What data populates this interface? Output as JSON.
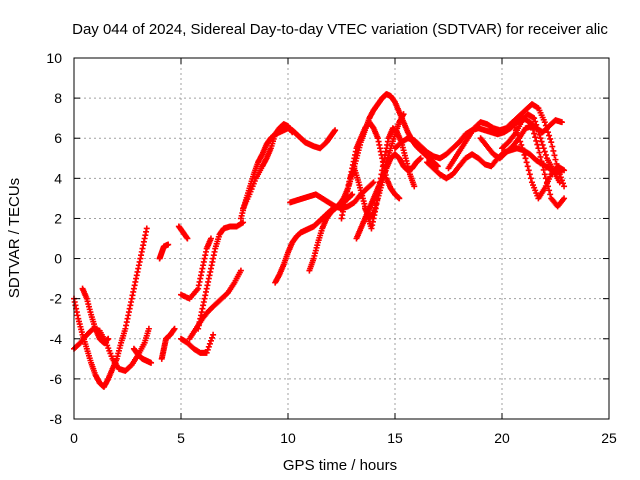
{
  "chart_data": {
    "type": "scatter",
    "title": "Day 044 of 2024, Sidereal Day-to-day VTEC variation (SDTVAR) for receiver alic",
    "xlabel": "GPS time / hours",
    "ylabel": "SDTVAR / TECUs",
    "xlim": [
      0,
      25
    ],
    "ylim": [
      -8,
      10
    ],
    "xticks": [
      0,
      5,
      10,
      15,
      20,
      25
    ],
    "yticks": [
      -8,
      -6,
      -4,
      -2,
      0,
      2,
      4,
      6,
      8,
      10
    ],
    "grid": true,
    "marker": "+",
    "color": "#ff0000",
    "series": [
      {
        "x": [
          0.0,
          0.2,
          0.4,
          0.6,
          0.8,
          1.0,
          1.2,
          1.4,
          1.6,
          1.8,
          2.0,
          2.2,
          2.4,
          2.6,
          2.8,
          3.0,
          3.2,
          3.4
        ],
        "y": [
          -2.0,
          -3.0,
          -3.8,
          -4.5,
          -5.2,
          -5.8,
          -6.2,
          -6.4,
          -6.0,
          -5.5,
          -5.0,
          -4.2,
          -3.5,
          -2.5,
          -1.5,
          -0.5,
          0.5,
          1.5
        ]
      },
      {
        "x": [
          0.0,
          0.3,
          0.6,
          0.9,
          1.2,
          1.5,
          1.8,
          2.1,
          2.4,
          2.7,
          3.0,
          3.3,
          3.5
        ],
        "y": [
          -4.5,
          -4.2,
          -3.8,
          -3.5,
          -3.6,
          -4.2,
          -5.0,
          -5.5,
          -5.6,
          -5.3,
          -4.8,
          -4.2,
          -3.5
        ]
      },
      {
        "x": [
          0.4,
          0.6,
          0.8,
          1.0,
          1.2,
          1.4,
          1.6
        ],
        "y": [
          -1.5,
          -2.0,
          -2.8,
          -3.5,
          -4.0,
          -4.2,
          -4.0
        ]
      },
      {
        "x": [
          2.8,
          3.0,
          3.2,
          3.4,
          3.6
        ],
        "y": [
          -4.5,
          -4.8,
          -5.0,
          -5.1,
          -5.2
        ]
      },
      {
        "x": [
          4.1,
          4.2,
          4.3,
          4.5,
          4.7
        ],
        "y": [
          -5.0,
          -4.5,
          -4.0,
          -3.8,
          -3.5
        ]
      },
      {
        "x": [
          4.0,
          4.1,
          4.2,
          4.4
        ],
        "y": [
          0.0,
          0.3,
          0.6,
          0.7
        ]
      },
      {
        "x": [
          4.9,
          5.1,
          5.3
        ],
        "y": [
          1.6,
          1.3,
          1.0
        ]
      },
      {
        "x": [
          5.0,
          5.3,
          5.6,
          5.9,
          6.2,
          6.5
        ],
        "y": [
          -4.0,
          -4.2,
          -4.5,
          -4.7,
          -4.7,
          -3.8
        ]
      },
      {
        "x": [
          5.0,
          5.4,
          5.8,
          6.0,
          6.2,
          6.4
        ],
        "y": [
          -1.8,
          -2.0,
          -1.5,
          -0.5,
          0.5,
          1.0
        ]
      },
      {
        "x": [
          5.4,
          5.7,
          6.0,
          6.3,
          6.6,
          6.9,
          7.2,
          7.5,
          7.8
        ],
        "y": [
          -4.0,
          -3.5,
          -3.0,
          -2.6,
          -2.3,
          -2.0,
          -1.7,
          -1.2,
          -0.6
        ]
      },
      {
        "x": [
          5.8,
          6.0,
          6.2,
          6.4,
          6.6,
          6.8,
          7.0,
          7.3,
          7.6,
          7.9
        ],
        "y": [
          -3.5,
          -2.5,
          -1.5,
          -0.5,
          0.5,
          1.2,
          1.5,
          1.6,
          1.6,
          1.8
        ]
      },
      {
        "x": [
          7.8,
          8.0,
          8.2,
          8.4,
          8.6,
          8.8,
          9.0,
          9.2,
          9.4,
          9.6,
          9.8,
          10.0,
          10.2,
          10.4,
          10.6,
          10.8,
          11.0,
          11.2,
          11.5,
          11.8,
          12.0,
          12.2
        ],
        "y": [
          2.0,
          2.8,
          3.5,
          4.2,
          4.8,
          5.2,
          5.7,
          6.0,
          6.2,
          6.3,
          6.4,
          6.5,
          6.4,
          6.2,
          6.0,
          5.8,
          5.7,
          5.6,
          5.5,
          5.8,
          6.1,
          6.4
        ]
      },
      {
        "x": [
          7.9,
          8.2,
          8.5,
          8.8,
          9.0,
          9.2,
          9.4,
          9.6,
          9.8,
          10.0,
          10.2
        ],
        "y": [
          2.5,
          3.2,
          4.0,
          4.6,
          5.0,
          5.5,
          6.2,
          6.5,
          6.7,
          6.6,
          6.3
        ]
      },
      {
        "x": [
          9.4,
          9.6,
          9.8,
          10.0,
          10.2,
          10.4,
          10.6,
          10.8,
          11.0,
          11.2,
          11.4,
          11.6,
          11.8,
          12.0,
          12.2,
          12.4,
          12.6,
          12.8,
          13.0
        ],
        "y": [
          -1.2,
          -0.8,
          -0.3,
          0.3,
          0.8,
          1.1,
          1.3,
          1.4,
          1.5,
          1.6,
          1.8,
          2.0,
          2.2,
          2.4,
          2.5,
          2.7,
          2.8,
          3.0,
          3.2
        ]
      },
      {
        "x": [
          10.1,
          10.4,
          10.7,
          11.0,
          11.3,
          11.6,
          11.9,
          12.2,
          12.5,
          12.8,
          13.1,
          13.4,
          13.7,
          14.0
        ],
        "y": [
          2.8,
          2.9,
          3.0,
          3.1,
          3.2,
          3.0,
          2.8,
          2.6,
          2.5,
          2.6,
          2.8,
          3.2,
          3.5,
          3.8
        ]
      },
      {
        "x": [
          11.0,
          11.2,
          11.4,
          11.6,
          11.8,
          12.0,
          12.2,
          12.4,
          12.6,
          12.8,
          13.0,
          13.2,
          13.4,
          13.6,
          13.8,
          14.0,
          14.2,
          14.4,
          14.6,
          14.8,
          15.0,
          15.2,
          15.4,
          15.6,
          15.8,
          16.0,
          16.2,
          16.4,
          16.6,
          16.8,
          17.0
        ],
        "y": [
          -0.6,
          0.0,
          0.8,
          1.5,
          2.0,
          2.3,
          2.5,
          2.7,
          3.0,
          3.5,
          4.2,
          5.0,
          5.8,
          6.4,
          7.0,
          7.4,
          7.7,
          8.0,
          8.2,
          8.1,
          7.8,
          7.3,
          6.8,
          6.3,
          5.9,
          5.6,
          5.4,
          5.2,
          5.0,
          4.8,
          4.6
        ]
      },
      {
        "x": [
          12.5,
          12.7,
          12.9,
          13.1,
          13.3,
          13.5,
          13.7,
          13.9,
          14.1,
          14.3,
          14.5,
          14.7,
          14.9,
          15.1,
          15.3,
          15.5,
          15.7,
          15.9
        ],
        "y": [
          2.0,
          3.0,
          4.0,
          4.5,
          3.8,
          3.0,
          2.2,
          1.5,
          2.5,
          3.8,
          5.0,
          6.0,
          6.5,
          6.3,
          5.8,
          5.0,
          4.2,
          3.6
        ]
      },
      {
        "x": [
          12.8,
          13.0,
          13.2,
          13.4,
          13.6,
          13.8,
          14.0,
          14.2,
          14.4,
          14.6,
          14.8,
          15.0,
          15.2
        ],
        "y": [
          3.5,
          4.5,
          5.5,
          6.0,
          6.5,
          6.8,
          6.5,
          6.0,
          5.0,
          4.0,
          3.5,
          3.2,
          3.0
        ]
      },
      {
        "x": [
          13.2,
          13.4,
          13.6,
          13.8,
          14.0,
          14.2,
          14.4,
          14.6,
          14.8,
          15.0,
          15.2,
          15.4
        ],
        "y": [
          1.0,
          1.5,
          2.0,
          2.5,
          3.0,
          3.5,
          4.0,
          4.8,
          5.5,
          6.2,
          6.8,
          7.2
        ]
      },
      {
        "x": [
          13.6,
          13.8,
          14.0,
          14.2,
          14.4,
          14.6,
          14.8,
          15.0,
          15.2,
          15.4,
          15.6,
          15.8,
          16.0,
          16.2
        ],
        "y": [
          2.5,
          2.0,
          2.3,
          3.0,
          3.8,
          4.5,
          5.0,
          5.2,
          5.0,
          4.6,
          4.4,
          4.5,
          4.8,
          5.0
        ]
      },
      {
        "x": [
          15.0,
          15.3,
          15.6,
          15.9,
          16.2,
          16.5,
          16.8,
          17.1,
          17.4,
          17.7,
          18.0,
          18.3,
          18.6,
          18.9,
          19.2,
          19.5,
          19.8,
          20.1,
          20.4,
          20.7,
          21.0,
          21.3,
          21.6,
          21.9,
          22.2,
          22.5,
          22.8
        ],
        "y": [
          5.5,
          5.8,
          6.0,
          5.9,
          5.6,
          5.3,
          5.1,
          5.0,
          5.2,
          5.5,
          5.8,
          6.2,
          6.4,
          6.5,
          6.4,
          6.3,
          6.2,
          6.3,
          6.5,
          6.8,
          7.0,
          6.8,
          6.5,
          6.3,
          6.6,
          6.9,
          6.8
        ]
      },
      {
        "x": [
          16.5,
          16.8,
          17.1,
          17.4,
          17.7,
          18.0,
          18.3,
          18.6,
          18.9,
          19.2,
          19.5,
          19.8,
          20.1,
          20.4,
          20.7,
          21.0,
          21.3,
          21.6,
          21.9,
          22.2,
          22.5,
          22.8
        ],
        "y": [
          4.8,
          4.5,
          4.2,
          4.0,
          4.2,
          4.6,
          5.0,
          5.2,
          5.0,
          4.7,
          4.6,
          5.0,
          5.3,
          5.4,
          5.5,
          5.4,
          5.2,
          4.9,
          4.7,
          4.5,
          4.3,
          4.4
        ]
      },
      {
        "x": [
          17.5,
          17.8,
          18.1,
          18.4,
          18.7,
          19.0,
          19.3,
          19.6,
          19.9,
          20.2,
          20.5,
          20.8,
          21.1,
          21.4,
          21.7,
          22.0,
          22.3,
          22.6,
          22.9
        ],
        "y": [
          4.5,
          5.0,
          5.5,
          6.0,
          6.5,
          6.8,
          6.7,
          6.5,
          6.4,
          6.5,
          6.8,
          7.1,
          7.4,
          7.7,
          7.5,
          6.8,
          5.8,
          4.5,
          3.6
        ]
      },
      {
        "x": [
          19.0,
          19.3,
          19.6,
          19.9,
          20.2,
          20.5,
          20.8,
          21.1,
          21.4,
          21.7,
          22.0,
          22.3,
          22.6,
          22.9
        ],
        "y": [
          6.0,
          5.6,
          5.2,
          5.0,
          5.3,
          5.6,
          6.0,
          6.5,
          6.6,
          5.5,
          4.2,
          3.0,
          2.6,
          3.0
        ]
      },
      {
        "x": [
          20.0,
          20.3,
          20.6,
          20.9,
          21.2,
          21.5,
          21.8,
          22.1,
          22.4,
          22.7
        ],
        "y": [
          5.5,
          5.8,
          6.2,
          6.8,
          7.2,
          7.0,
          6.0,
          5.0,
          4.4,
          3.8
        ]
      },
      {
        "x": [
          20.5,
          20.8,
          21.1,
          21.4,
          21.7,
          22.0,
          22.3,
          22.6,
          22.9
        ],
        "y": [
          6.8,
          6.0,
          5.0,
          3.8,
          3.0,
          3.5,
          4.2,
          4.6,
          4.4
        ]
      }
    ]
  }
}
